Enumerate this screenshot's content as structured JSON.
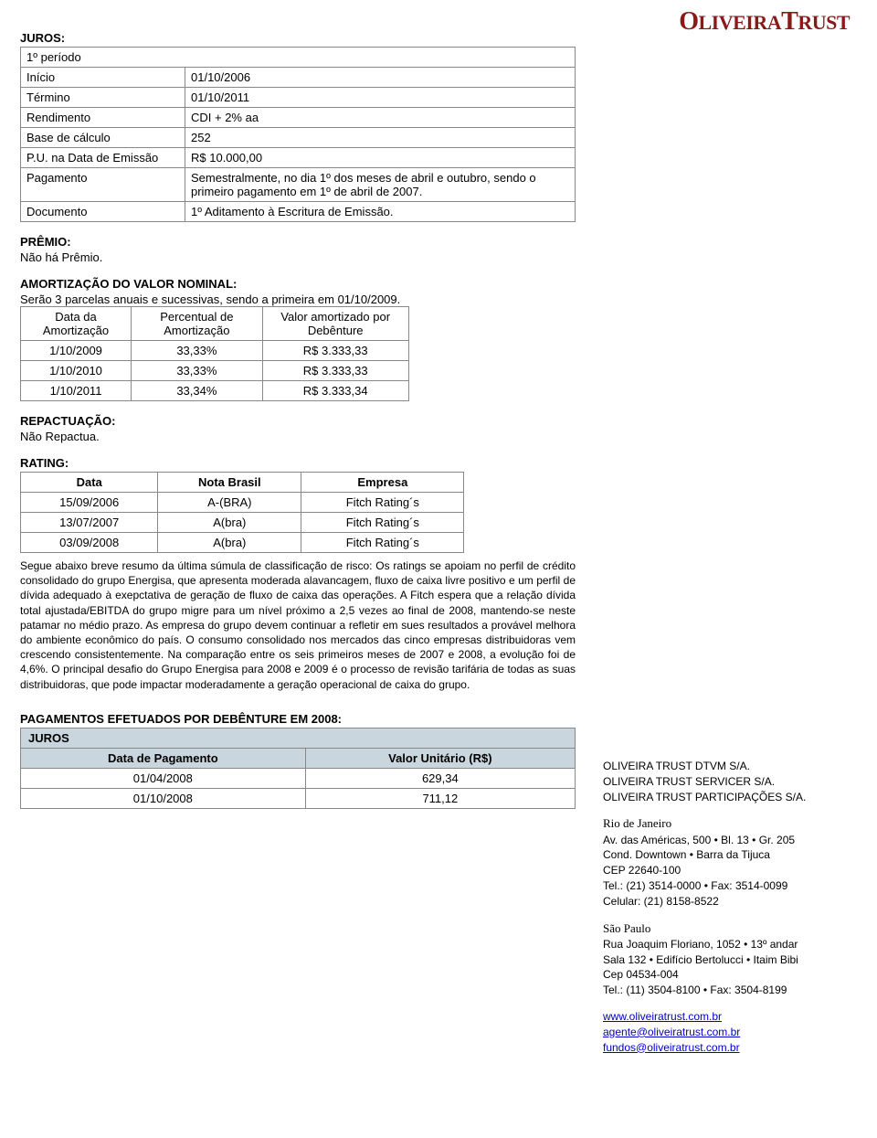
{
  "logo_text": "OLIVEIRA TRUST",
  "juros": {
    "title": "JUROS:",
    "subtitle": "1º período",
    "rows": [
      {
        "label": "Início",
        "value": "01/10/2006"
      },
      {
        "label": "Término",
        "value": "01/10/2011"
      },
      {
        "label": "Rendimento",
        "value": "CDI + 2% aa"
      },
      {
        "label": "Base de cálculo",
        "value": "252"
      },
      {
        "label": "P.U. na Data de Emissão",
        "value": "R$ 10.000,00"
      },
      {
        "label": "Pagamento",
        "value": "Semestralmente, no dia 1º dos meses de abril e outubro, sendo o primeiro pagamento em 1º de abril de 2007."
      },
      {
        "label": "Documento",
        "value": "1º Aditamento à Escritura de Emissão."
      }
    ]
  },
  "premio": {
    "title": "PRÊMIO:",
    "text": "Não há Prêmio."
  },
  "amort": {
    "title": "AMORTIZAÇÃO DO VALOR NOMINAL:",
    "desc": "Serão 3 parcelas anuais e sucessivas, sendo a primeira em 01/10/2009.",
    "columns": [
      "Data da Amortização",
      "Percentual de Amortização",
      "Valor amortizado por Debênture"
    ],
    "rows": [
      [
        "1/10/2009",
        "33,33%",
        "R$ 3.333,33"
      ],
      [
        "1/10/2010",
        "33,33%",
        "R$ 3.333,33"
      ],
      [
        "1/10/2011",
        "33,34%",
        "R$ 3.333,34"
      ]
    ]
  },
  "repac": {
    "title": "REPACTUAÇÃO:",
    "text": "Não Repactua."
  },
  "rating": {
    "title": "RATING:",
    "columns": [
      "Data",
      "Nota Brasil",
      "Empresa"
    ],
    "rows": [
      [
        "15/09/2006",
        "A-(BRA)",
        "Fitch Rating´s"
      ],
      [
        "13/07/2007",
        "A(bra)",
        "Fitch Rating´s"
      ],
      [
        "03/09/2008",
        "A(bra)",
        "Fitch Rating´s"
      ]
    ],
    "note": "Segue abaixo breve resumo da última súmula de classificação de risco: Os ratings se apoiam no perfil de crédito consolidado do grupo Energisa, que apresenta moderada alavancagem, fluxo de caixa livre positivo e um perfil de dívida adequado à exepctativa de geração de fluxo de caixa das operações. A Fitch espera que a relação dívida total ajustada/EBITDA do grupo migre para um nível próximo a 2,5 vezes ao final de 2008, mantendo-se neste patamar no médio prazo. As empresa do grupo devem continuar a refletir em sues resultados a provável melhora do ambiente econômico do país. O consumo consolidado nos mercados das cinco empresas distribuidoras vem crescendo consistentemente. Na comparação entre os seis primeiros meses de 2007 e 2008, a evolução foi de 4,6%. O principal desafio do Grupo Energisa para 2008 e 2009 é o processo de revisão tarifária de todas as suas distribuidoras, que pode impactar moderadamente a geração operacional de caixa do grupo."
  },
  "pagamentos": {
    "title": "PAGAMENTOS EFETUADOS POR DEBÊNTURE EM 2008:",
    "header_top": "JUROS",
    "columns": [
      "Data de Pagamento",
      "Valor Unitário (R$)"
    ],
    "rows": [
      [
        "01/04/2008",
        "629,34"
      ],
      [
        "01/10/2008",
        "711,12"
      ]
    ]
  },
  "footer": {
    "companies": [
      "OLIVEIRA TRUST DTVM S/A.",
      "OLIVEIRA TRUST SERVICER S/A.",
      "OLIVEIRA TRUST PARTICIPAÇÕES S/A."
    ],
    "rio": {
      "city": "Rio de Janeiro",
      "l1": "Av. das Américas, 500 • Bl. 13 • Gr. 205",
      "l2": "Cond. Downtown • Barra da Tijuca",
      "l3": "CEP 22640-100",
      "l4": "Tel.: (21) 3514-0000 • Fax: 3514-0099",
      "l5": "Celular: (21) 8158-8522"
    },
    "sp": {
      "city": "São Paulo",
      "l1": "Rua Joaquim Floriano, 1052 • 13º andar",
      "l2": "Sala 132 • Edifício Bertolucci • Itaim Bibi",
      "l3": "Cep 04534-004",
      "l4": "Tel.: (11) 3504-8100 • Fax: 3504-8199"
    },
    "links": [
      "www.oliveiratrust.com.br",
      "agente@oliveiratrust.com.br",
      "fundos@oliveiratrust.com.br"
    ]
  }
}
